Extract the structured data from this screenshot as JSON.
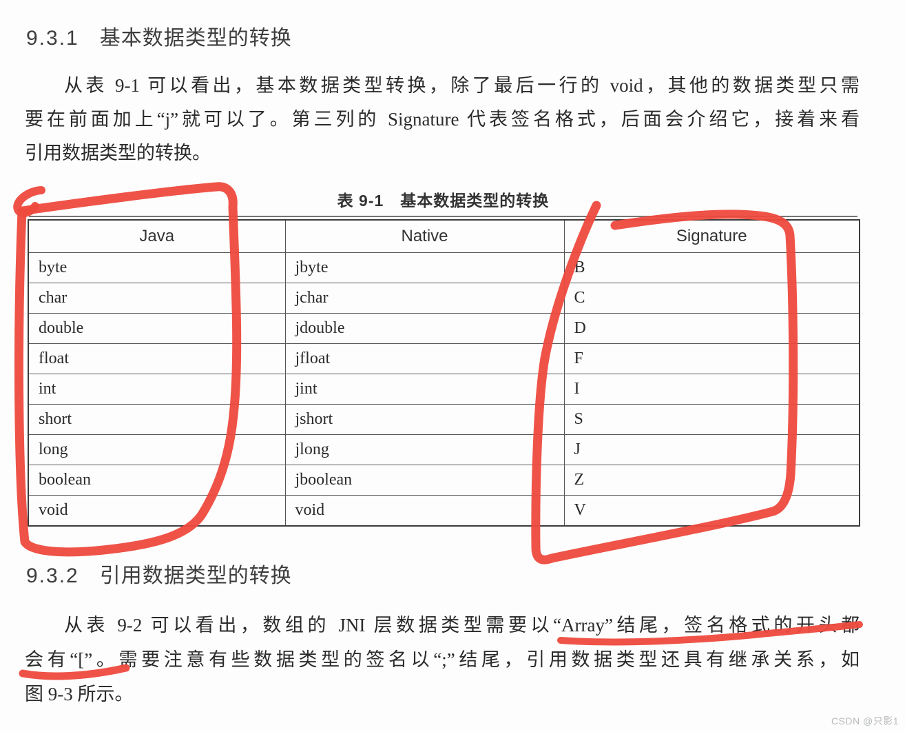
{
  "section1": {
    "number": "9.3.1",
    "title": "基本数据类型的转换"
  },
  "para1": {
    "lines": [
      "从表 9-1 可以看出，基本数据类型转换，除了最后一行的 void，其他的数据类型只需",
      "要在前面加上“j”就可以了。第三列的 Signature 代表签名格式，后面会介绍它，接着来看",
      "引用数据类型的转换。"
    ]
  },
  "table": {
    "caption": "表 9-1　基本数据类型的转换",
    "headers": [
      "Java",
      "Native",
      "Signature"
    ],
    "rows": [
      [
        "byte",
        "jbyte",
        "B"
      ],
      [
        "char",
        "jchar",
        "C"
      ],
      [
        "double",
        "jdouble",
        "D"
      ],
      [
        "float",
        "jfloat",
        "F"
      ],
      [
        "int",
        "jint",
        "I"
      ],
      [
        "short",
        "jshort",
        "S"
      ],
      [
        "long",
        "jlong",
        "J"
      ],
      [
        "boolean",
        "jboolean",
        "Z"
      ],
      [
        "void",
        "void",
        "V"
      ]
    ]
  },
  "section2": {
    "number": "9.3.2",
    "title": "引用数据类型的转换"
  },
  "para2": {
    "lines": [
      "从表 9-2 可以看出，数组的 JNI 层数据类型需要以“Array”结尾，签名格式的开头都",
      "会有“[”。需要注意有些数据类型的签名以“;”结尾，引用数据类型还具有继承关系，如",
      "图 9-3 所示。"
    ]
  },
  "annotations": {
    "red": "#ee4a3e"
  },
  "watermark": "CSDN @只影1"
}
